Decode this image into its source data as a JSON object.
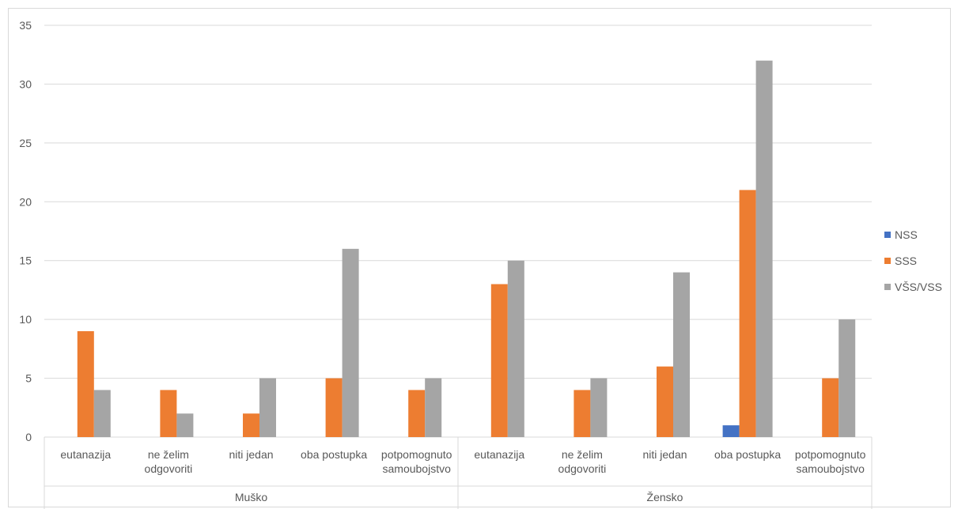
{
  "chart_data": {
    "type": "bar",
    "title": "",
    "xlabel": "",
    "ylabel": "",
    "ylim": [
      0,
      35
    ],
    "yticks": [
      0,
      5,
      10,
      15,
      20,
      25,
      30,
      35
    ],
    "grid": true,
    "legend_position": "right",
    "groups": [
      {
        "label": "Muško",
        "categories": [
          "eutanazija",
          "ne želim odgovoriti",
          "niti jedan",
          "oba postupka",
          "potpomognuto samoubojstvo"
        ]
      },
      {
        "label": "Žensko",
        "categories": [
          "eutanazija",
          "ne želim odgovoriti",
          "niti jedan",
          "oba postupka",
          "potpomognuto samoubojstvo"
        ]
      }
    ],
    "categories": [
      "Muško | eutanazija",
      "Muško | ne želim odgovoriti",
      "Muško | niti jedan",
      "Muško | oba postupka",
      "Muško | potpomognuto samoubojstvo",
      "Žensko | eutanazija",
      "Žensko | ne želim odgovoriti",
      "Žensko | niti jedan",
      "Žensko | oba postupka",
      "Žensko | potpomognuto samoubojstvo"
    ],
    "series": [
      {
        "name": "NSS",
        "color": "#4472c4",
        "values": [
          0,
          0,
          0,
          0,
          0,
          0,
          0,
          0,
          1,
          0
        ]
      },
      {
        "name": "SSS",
        "color": "#ed7d31",
        "values": [
          9,
          4,
          2,
          5,
          4,
          13,
          4,
          6,
          21,
          5
        ]
      },
      {
        "name": "VŠS/VSS",
        "color": "#a5a5a5",
        "values": [
          4,
          2,
          5,
          16,
          5,
          15,
          5,
          14,
          32,
          10
        ]
      }
    ]
  }
}
